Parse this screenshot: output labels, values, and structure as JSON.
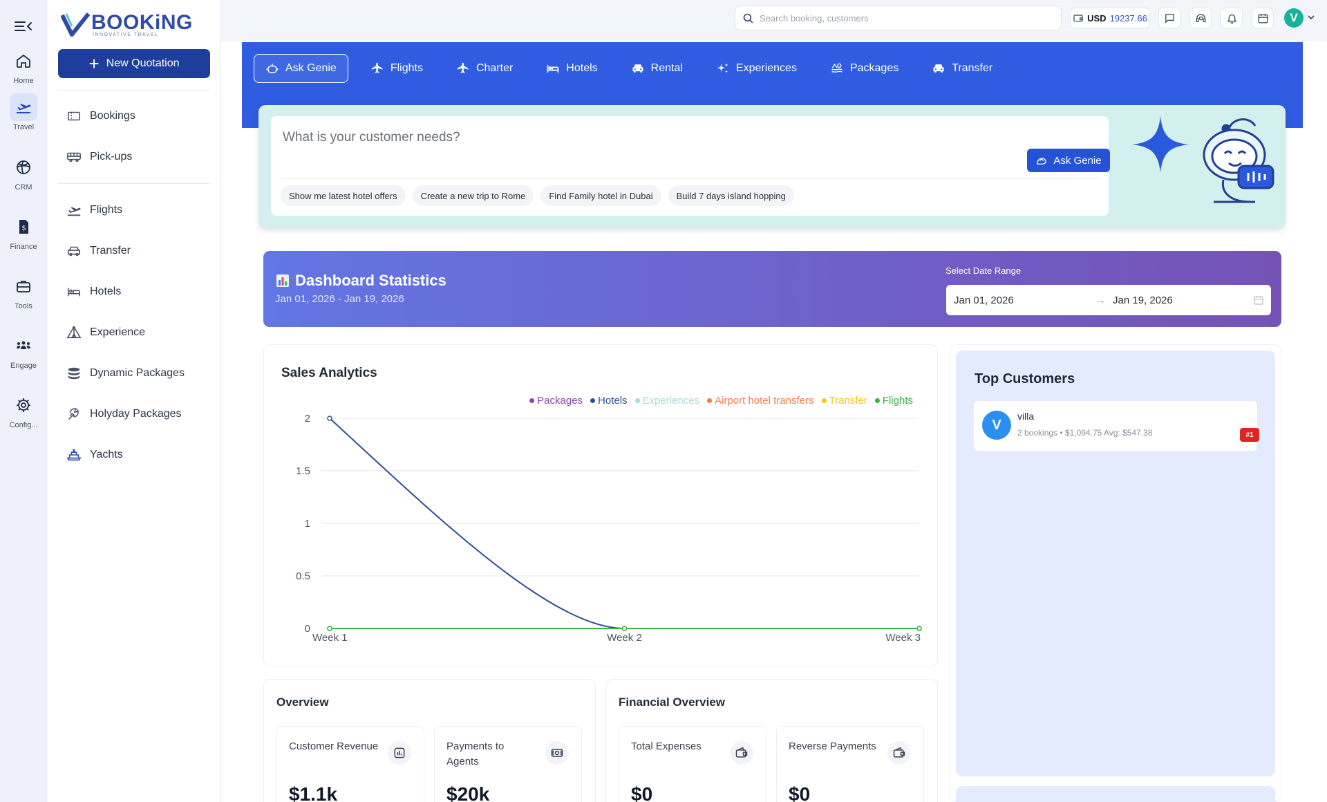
{
  "app": {
    "logo_text": "BOOKiNG",
    "logo_tagline": "INNOVATIVE TRAVEL"
  },
  "rail": {
    "items": [
      {
        "label": "Home",
        "icon": "home-icon"
      },
      {
        "label": "Travel",
        "icon": "plane-icon",
        "active": true
      },
      {
        "label": "CRM",
        "icon": "globe-icon"
      },
      {
        "label": "Finance",
        "icon": "dollar-file-icon"
      },
      {
        "label": "Tools",
        "icon": "toolbox-icon"
      },
      {
        "label": "Engage",
        "icon": "people-icon"
      },
      {
        "label": "Config...",
        "icon": "gear-icon"
      }
    ]
  },
  "sidebar": {
    "new_quotation": "New Quotation",
    "items": [
      {
        "label": "Bookings",
        "icon": "ticket-icon"
      },
      {
        "label": "Pick-ups",
        "icon": "bus-icon"
      },
      {
        "label": "Flights",
        "icon": "plane-takeoff-icon"
      },
      {
        "label": "Transfer",
        "icon": "car-icon"
      },
      {
        "label": "Hotels",
        "icon": "bed-icon"
      },
      {
        "label": "Experience",
        "icon": "tent-icon"
      },
      {
        "label": "Dynamic Packages",
        "icon": "stack-icon"
      },
      {
        "label": "Holyday Packages",
        "icon": "beach-icon"
      },
      {
        "label": "Yachts",
        "icon": "ship-icon"
      }
    ]
  },
  "topbar": {
    "search_placeholder": "Search booking, customers",
    "currency": "USD",
    "balance": "19237.66",
    "avatar_letter": "V"
  },
  "tabs": [
    {
      "label": "Ask Genie",
      "icon": "robot-icon",
      "active": true
    },
    {
      "label": "Flights",
      "icon": "plane-icon"
    },
    {
      "label": "Charter",
      "icon": "plane-icon"
    },
    {
      "label": "Hotels",
      "icon": "bed-icon"
    },
    {
      "label": "Rental",
      "icon": "car-icon"
    },
    {
      "label": "Experiences",
      "icon": "sparkle-icon"
    },
    {
      "label": "Packages",
      "icon": "packages-icon"
    },
    {
      "label": "Transfer",
      "icon": "car-icon"
    }
  ],
  "genie": {
    "question": "What is your customer needs?",
    "ask_button": "Ask Genie",
    "suggestions": [
      "Show me latest hotel offers",
      "Create a new trip to Rome",
      "Find Family hotel in Dubai",
      "Build 7 days island hopping"
    ]
  },
  "stats": {
    "title": "Dashboard Statistics",
    "range_text": "Jan 01, 2026 - Jan 19, 2026",
    "date_range_label": "Select Date Range",
    "start_date": "Jan 01, 2026",
    "arrow": "→",
    "end_date": "Jan 19, 2026"
  },
  "sales": {
    "title": "Sales Analytics"
  },
  "chart_data": {
    "type": "line",
    "title": "Sales Analytics",
    "categories": [
      "Week 1",
      "Week 2",
      "Week 3"
    ],
    "ylim": [
      0,
      2
    ],
    "yticks": [
      "0",
      "0.5",
      "1",
      "1.5",
      "2"
    ],
    "grid": true,
    "legend_position": "top-right",
    "series": [
      {
        "name": "Packages",
        "color": "#8e44ad",
        "values": [
          0,
          0,
          0
        ]
      },
      {
        "name": "Hotels",
        "color": "#2f4f8f",
        "values": [
          2,
          0,
          0
        ]
      },
      {
        "name": "Experiences",
        "color": "#a8dcd6",
        "values": [
          0,
          0,
          0
        ]
      },
      {
        "name": "Airport hotel transfers",
        "color": "#f07f4f",
        "values": [
          0,
          0,
          0
        ]
      },
      {
        "name": "Transfer",
        "color": "#f5c518",
        "values": [
          0,
          0,
          0
        ]
      },
      {
        "name": "Flights",
        "color": "#3cb043",
        "values": [
          0,
          0,
          0
        ]
      }
    ]
  },
  "customers": {
    "title": "Top Customers",
    "list": [
      {
        "initial": "V",
        "name": "villa",
        "stats": "2 bookings • $1,094.75   Avg: $547.38",
        "rank": "#1"
      }
    ]
  },
  "overview": {
    "title": "Overview",
    "metrics": [
      {
        "label": "Customer Revenue",
        "value": "$1.1k",
        "icon": "chart-icon"
      },
      {
        "label": "Payments to Agents",
        "value": "$20k",
        "icon": "cash-icon"
      }
    ]
  },
  "financial": {
    "title": "Financial Overview",
    "metrics": [
      {
        "label": "Total Expenses",
        "value": "$0",
        "icon": "wallet-icon"
      },
      {
        "label": "Reverse Payments",
        "value": "$0",
        "icon": "wallet-icon"
      }
    ]
  }
}
